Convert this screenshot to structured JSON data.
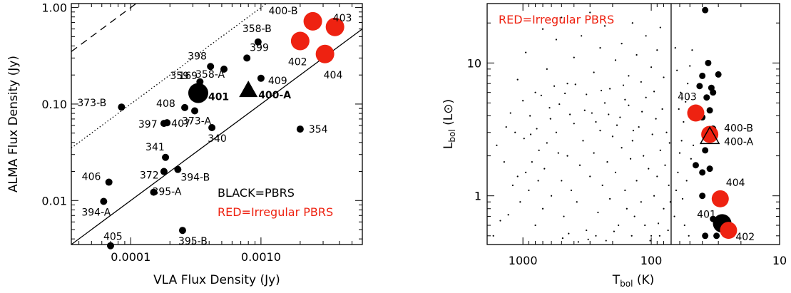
{
  "colors": {
    "black": "#000000",
    "red": "#ee2211"
  },
  "chart_data": [
    {
      "type": "scatter",
      "xlabel": "VLA Flux Density (Jy)",
      "ylabel": "ALMA Flux Density (Jy)",
      "xscale": "log",
      "yscale": "log",
      "xlim": [
        3.5e-05,
        0.006
      ],
      "ylim": [
        0.0035,
        1.1
      ],
      "xticks": [
        {
          "v": 0.0001,
          "label": "0.0001"
        },
        {
          "v": 0.001,
          "label": "0.0010"
        }
      ],
      "yticks": [
        {
          "v": 0.01,
          "label": "0.01"
        },
        {
          "v": 0.1,
          "label": "0.10"
        },
        {
          "v": 1,
          "label": "1.00"
        }
      ],
      "notes": [
        {
          "text": "BLACK=PBRS",
          "color": "black"
        },
        {
          "text": "RED=Irregular PBRS",
          "color": "red"
        }
      ],
      "reference_lines": [
        {
          "style": "solid",
          "ratio": 100
        },
        {
          "style": "dotted",
          "ratio": 1000
        },
        {
          "style": "dashed",
          "ratio": 10000
        }
      ],
      "points": [
        {
          "label": "405",
          "x": 7e-05,
          "y": 0.0034,
          "marker": "dot",
          "color": "black"
        },
        {
          "label": "395-B",
          "x": 0.00025,
          "y": 0.0049,
          "marker": "dot",
          "color": "black"
        },
        {
          "label": "394-A",
          "x": 6.2e-05,
          "y": 0.0098,
          "marker": "dot",
          "color": "black"
        },
        {
          "label": "395-A",
          "x": 0.00015,
          "y": 0.0122,
          "marker": "dot",
          "color": "black"
        },
        {
          "label": "406",
          "x": 6.8e-05,
          "y": 0.0155,
          "marker": "dot",
          "color": "black"
        },
        {
          "label": "372",
          "x": 0.00018,
          "y": 0.02,
          "marker": "dot",
          "color": "black"
        },
        {
          "label": "394-B",
          "x": 0.00023,
          "y": 0.021,
          "marker": "dot",
          "color": "black"
        },
        {
          "label": "341",
          "x": 0.000185,
          "y": 0.028,
          "marker": "dot",
          "color": "black"
        },
        {
          "label": "340",
          "x": 0.00042,
          "y": 0.057,
          "marker": "dot",
          "color": "black"
        },
        {
          "label": "354",
          "x": 0.002,
          "y": 0.055,
          "marker": "dot",
          "color": "black"
        },
        {
          "label": "397",
          "x": 0.00018,
          "y": 0.063,
          "marker": "dot",
          "color": "black"
        },
        {
          "label": "407",
          "x": 0.00019,
          "y": 0.064,
          "marker": "dot",
          "color": "black"
        },
        {
          "label": "373-A",
          "x": 0.00031,
          "y": 0.085,
          "marker": "dot",
          "color": "black"
        },
        {
          "label": "373-B",
          "x": 8.5e-05,
          "y": 0.093,
          "marker": "dot",
          "color": "black"
        },
        {
          "label": "408",
          "x": 0.00026,
          "y": 0.092,
          "marker": "dot",
          "color": "black"
        },
        {
          "label": "401",
          "x": 0.00033,
          "y": 0.13,
          "marker": "big-dot",
          "color": "black"
        },
        {
          "label": "400-A",
          "x": 0.0008,
          "y": 0.14,
          "marker": "triangle",
          "color": "black"
        },
        {
          "label": "359",
          "x": 0.00034,
          "y": 0.148,
          "marker": "dot",
          "color": "black"
        },
        {
          "label": "169",
          "x": 0.00034,
          "y": 0.17,
          "marker": "dot",
          "color": "black"
        },
        {
          "label": "409",
          "x": 0.001,
          "y": 0.185,
          "marker": "dot",
          "color": "black"
        },
        {
          "label": "358-A",
          "x": 0.00052,
          "y": 0.23,
          "marker": "dot",
          "color": "black"
        },
        {
          "label": "398",
          "x": 0.00041,
          "y": 0.245,
          "marker": "dot",
          "color": "black"
        },
        {
          "label": "399",
          "x": 0.00078,
          "y": 0.3,
          "marker": "dot",
          "color": "black"
        },
        {
          "label": "358-B",
          "x": 0.00095,
          "y": 0.44,
          "marker": "dot",
          "color": "black"
        },
        {
          "label": "404",
          "x": 0.0031,
          "y": 0.33,
          "marker": "big-dot",
          "color": "red"
        },
        {
          "label": "402",
          "x": 0.002,
          "y": 0.45,
          "marker": "big-dot",
          "color": "red"
        },
        {
          "label": "400-B",
          "x": 0.0025,
          "y": 0.72,
          "marker": "big-dot",
          "color": "red"
        },
        {
          "label": "403",
          "x": 0.0037,
          "y": 0.63,
          "marker": "big-dot",
          "color": "red"
        }
      ]
    },
    {
      "type": "scatter",
      "xlabel": "T",
      "xlabel_sub": "bol",
      "xlabel_unit": " (K)",
      "ylabel": "L",
      "ylabel_sub": "bol",
      "ylabel_unit": " (L⊙)",
      "xscale": "log",
      "yscale": "log",
      "xreversed": true,
      "xlim": [
        1900,
        10
      ],
      "ylim": [
        0.43,
        28
      ],
      "xticks": [
        {
          "v": 1000,
          "label": "1000"
        },
        {
          "v": 100,
          "label": "100"
        },
        {
          "v": 10,
          "label": "10"
        }
      ],
      "yticks": [
        {
          "v": 1,
          "label": "1"
        },
        {
          "v": 10,
          "label": "10"
        }
      ],
      "vertical_line_x": 70,
      "notes": [
        {
          "text": "RED=Irregular PBRS",
          "color": "red"
        }
      ],
      "highlight_points": [
        {
          "label": "403",
          "x": 45,
          "y": 4.2,
          "marker": "big-dot",
          "color": "red"
        },
        {
          "label": "400-B",
          "x": 35,
          "y": 2.9,
          "marker": "big-dot",
          "color": "red"
        },
        {
          "label": "400-A",
          "x": 35,
          "y": 2.8,
          "marker": "triangle",
          "color": "black"
        },
        {
          "label": "404",
          "x": 29,
          "y": 0.95,
          "marker": "big-dot",
          "color": "red"
        },
        {
          "label": "401",
          "x": 28,
          "y": 0.62,
          "marker": "big-dot",
          "color": "black"
        },
        {
          "label": "402",
          "x": 25,
          "y": 0.55,
          "marker": "big-dot",
          "color": "red"
        }
      ],
      "medium_points": [
        [
          38,
          25
        ],
        [
          36,
          10
        ],
        [
          40,
          8
        ],
        [
          30,
          8.2
        ],
        [
          34,
          6.5
        ],
        [
          42,
          6.7
        ],
        [
          33,
          6
        ],
        [
          37,
          5.5
        ],
        [
          35,
          4.4
        ],
        [
          40,
          3.9
        ],
        [
          33,
          3.2
        ],
        [
          38,
          2.2
        ],
        [
          45,
          1.7
        ],
        [
          40,
          1.5
        ],
        [
          35,
          1.6
        ],
        [
          30,
          1.0
        ],
        [
          40,
          1.0
        ],
        [
          33,
          0.67
        ],
        [
          27,
          0.58
        ],
        [
          38,
          0.5
        ],
        [
          31,
          0.5
        ]
      ],
      "small_points": [
        [
          1700,
          0.5
        ],
        [
          1300,
          0.72
        ],
        [
          1500,
          0.65
        ],
        [
          1200,
          1.2
        ],
        [
          1100,
          1.4
        ],
        [
          1050,
          0.9
        ],
        [
          900,
          1.1
        ],
        [
          950,
          1.5
        ],
        [
          850,
          1.8
        ],
        [
          800,
          0.6
        ],
        [
          700,
          0.8
        ],
        [
          750,
          2.2
        ],
        [
          650,
          2.5
        ],
        [
          600,
          1.0
        ],
        [
          550,
          3.0
        ],
        [
          500,
          1.3
        ],
        [
          480,
          0.7
        ],
        [
          450,
          2.0
        ],
        [
          420,
          1.1
        ],
        [
          400,
          3.5
        ],
        [
          380,
          0.9
        ],
        [
          360,
          1.7
        ],
        [
          340,
          2.6
        ],
        [
          320,
          0.55
        ],
        [
          300,
          1.4
        ],
        [
          290,
          4.2
        ],
        [
          280,
          2.1
        ],
        [
          260,
          0.75
        ],
        [
          250,
          3.1
        ],
        [
          240,
          1.2
        ],
        [
          230,
          5.0
        ],
        [
          220,
          1.8
        ],
        [
          210,
          0.95
        ],
        [
          200,
          2.8
        ],
        [
          190,
          1.5
        ],
        [
          180,
          0.6
        ],
        [
          175,
          3.9
        ],
        [
          170,
          2.3
        ],
        [
          160,
          1.1
        ],
        [
          155,
          0.8
        ],
        [
          150,
          4.8
        ],
        [
          145,
          1.9
        ],
        [
          140,
          2.6
        ],
        [
          135,
          0.7
        ],
        [
          130,
          1.3
        ],
        [
          125,
          3.3
        ],
        [
          120,
          0.9
        ],
        [
          115,
          2.0
        ],
        [
          110,
          5.5
        ],
        [
          105,
          1.6
        ],
        [
          100,
          0.5
        ],
        [
          98,
          2.9
        ],
        [
          95,
          1.0
        ],
        [
          92,
          3.8
        ],
        [
          90,
          1.4
        ],
        [
          88,
          0.62
        ],
        [
          85,
          2.2
        ],
        [
          82,
          4.5
        ],
        [
          80,
          0.8
        ],
        [
          78,
          1.7
        ],
        [
          76,
          3.0
        ],
        [
          74,
          0.55
        ],
        [
          73,
          1.2
        ],
        [
          72,
          2.5
        ],
        [
          71,
          0.9
        ],
        [
          1100,
          7.5
        ],
        [
          950,
          12
        ],
        [
          800,
          6
        ],
        [
          700,
          18
        ],
        [
          650,
          9
        ],
        [
          550,
          15
        ],
        [
          500,
          22
        ],
        [
          450,
          7
        ],
        [
          400,
          11
        ],
        [
          350,
          16
        ],
        [
          320,
          5.8
        ],
        [
          300,
          24
        ],
        [
          280,
          8.5
        ],
        [
          250,
          13
        ],
        [
          230,
          19
        ],
        [
          210,
          6.4
        ],
        [
          190,
          10.5
        ],
        [
          170,
          14
        ],
        [
          160,
          5.3
        ],
        [
          150,
          8
        ],
        [
          140,
          20
        ],
        [
          130,
          11.5
        ],
        [
          120,
          7.2
        ],
        [
          110,
          16
        ],
        [
          100,
          9.3
        ],
        [
          95,
          6.1
        ],
        [
          90,
          12.5
        ],
        [
          85,
          18.5
        ],
        [
          80,
          7.8
        ],
        [
          1250,
          4.2
        ],
        [
          1150,
          3.0
        ],
        [
          1000,
          5.2
        ],
        [
          880,
          4.0
        ],
        [
          780,
          3.2
        ],
        [
          720,
          5.7
        ],
        [
          620,
          4.6
        ],
        [
          570,
          6.7
        ],
        [
          520,
          4.9
        ],
        [
          470,
          5.9
        ],
        [
          430,
          4.1
        ],
        [
          390,
          6.9
        ],
        [
          330,
          4.4
        ],
        [
          270,
          3.6
        ],
        [
          245,
          6.2
        ],
        [
          215,
          4.1
        ],
        [
          185,
          3.4
        ],
        [
          165,
          6.8
        ],
        [
          138,
          3.1
        ],
        [
          118,
          4.3
        ],
        [
          1400,
          1.8
        ],
        [
          1600,
          2.4
        ],
        [
          1350,
          3.3
        ],
        [
          980,
          2.7
        ],
        [
          870,
          2.9
        ],
        [
          760,
          1.3
        ],
        [
          680,
          1.6
        ],
        [
          610,
          3.8
        ],
        [
          530,
          2.1
        ],
        [
          490,
          0.48
        ],
        [
          440,
          0.52
        ],
        [
          370,
          0.45
        ],
        [
          310,
          0.47
        ],
        [
          270,
          0.5
        ],
        [
          225,
          0.46
        ],
        [
          195,
          0.54
        ],
        [
          142,
          0.5
        ],
        [
          112,
          0.6
        ],
        [
          102,
          0.46
        ],
        [
          86,
          0.5
        ],
        [
          66,
          0.7
        ],
        [
          64,
          1.1
        ],
        [
          62,
          1.5
        ],
        [
          60,
          2.1
        ],
        [
          58,
          2.6
        ],
        [
          56,
          3.6
        ],
        [
          54,
          5.1
        ],
        [
          52,
          7.0
        ],
        [
          50,
          9.5
        ],
        [
          48,
          12.5
        ],
        [
          57,
          0.95
        ],
        [
          53,
          1.3
        ],
        [
          49,
          1.9
        ],
        [
          47,
          2.4
        ],
        [
          55,
          0.6
        ],
        [
          51,
          0.5
        ],
        [
          61,
          4.5
        ],
        [
          59,
          6.0
        ],
        [
          63,
          8.8
        ],
        [
          65,
          13
        ]
      ]
    }
  ]
}
